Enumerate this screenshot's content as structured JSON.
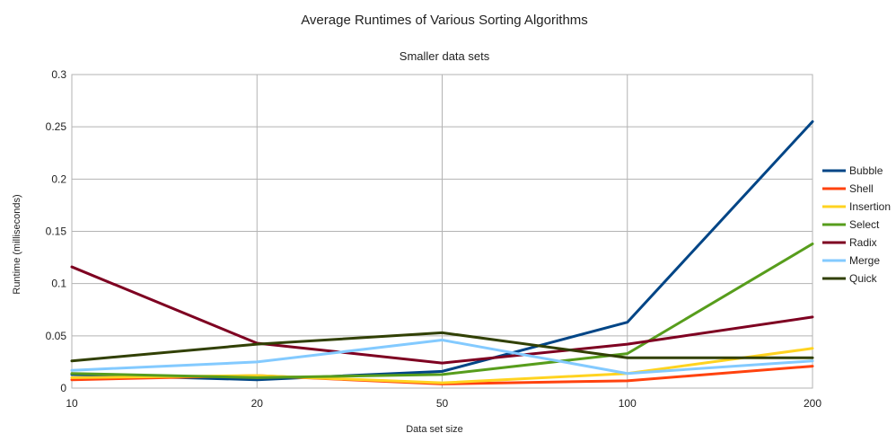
{
  "chart_data": {
    "type": "line",
    "title": "Average Runtimes of Various Sorting Algorithms",
    "subtitle": "Smaller data sets",
    "xlabel": "Data set size",
    "ylabel": "Runtime (milliseconds)",
    "categories": [
      "10",
      "20",
      "50",
      "100",
      "200"
    ],
    "ylim": [
      0,
      0.3
    ],
    "yticks": [
      "0",
      "0.05",
      "0.1",
      "0.15",
      "0.2",
      "0.25",
      "0.3"
    ],
    "grid": true,
    "legend_position": "right",
    "series": [
      {
        "name": "Bubble",
        "color": "#004586",
        "values": [
          0.013,
          0.008,
          0.016,
          0.063,
          0.255
        ]
      },
      {
        "name": "Shell",
        "color": "#ff420e",
        "values": [
          0.008,
          0.012,
          0.004,
          0.007,
          0.021
        ]
      },
      {
        "name": "Insertion",
        "color": "#ffd320",
        "values": [
          0.01,
          0.012,
          0.005,
          0.014,
          0.038
        ]
      },
      {
        "name": "Select",
        "color": "#579d1c",
        "values": [
          0.014,
          0.01,
          0.013,
          0.033,
          0.138
        ]
      },
      {
        "name": "Radix",
        "color": "#7e0021",
        "values": [
          0.116,
          0.043,
          0.024,
          0.042,
          0.068
        ]
      },
      {
        "name": "Merge",
        "color": "#83caff",
        "values": [
          0.017,
          0.025,
          0.046,
          0.014,
          0.026
        ]
      },
      {
        "name": "Quick",
        "color": "#314004",
        "values": [
          0.026,
          0.042,
          0.053,
          0.029,
          0.029
        ]
      }
    ]
  }
}
